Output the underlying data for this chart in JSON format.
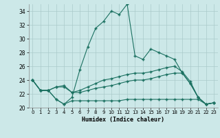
{
  "xlabel": "Humidex (Indice chaleur)",
  "ylabel": "",
  "xlim": [
    -0.5,
    23.5
  ],
  "ylim": [
    20,
    35
  ],
  "yticks": [
    20,
    22,
    24,
    26,
    28,
    30,
    32,
    34
  ],
  "xticks": [
    0,
    1,
    2,
    3,
    4,
    5,
    6,
    7,
    8,
    9,
    10,
    11,
    12,
    13,
    14,
    15,
    16,
    17,
    18,
    19,
    20,
    21,
    22,
    23
  ],
  "bg_color": "#cce8e8",
  "grid_color": "#aacaca",
  "line_color": "#1a7060",
  "lines": [
    [
      24.0,
      22.5,
      22.5,
      21.2,
      20.5,
      21.5,
      25.5,
      28.8,
      31.5,
      32.5,
      34.0,
      33.5,
      35.0,
      27.5,
      27.0,
      28.5,
      28.0,
      27.5,
      27.0,
      25.0,
      23.5,
      21.5,
      20.5,
      20.7
    ],
    [
      24.0,
      22.5,
      22.5,
      23.0,
      23.2,
      22.2,
      22.5,
      23.0,
      23.5,
      24.0,
      24.2,
      24.5,
      24.8,
      25.0,
      25.0,
      25.2,
      25.5,
      25.8,
      26.0,
      25.2,
      23.8,
      21.5,
      20.5,
      20.7
    ],
    [
      24.0,
      22.5,
      22.5,
      23.0,
      23.0,
      22.2,
      22.2,
      22.5,
      22.8,
      23.0,
      23.2,
      23.5,
      23.8,
      24.0,
      24.0,
      24.2,
      24.5,
      24.8,
      25.0,
      25.0,
      23.5,
      21.5,
      20.5,
      20.7
    ],
    [
      24.0,
      22.5,
      22.5,
      21.2,
      20.5,
      21.0,
      21.0,
      21.0,
      21.0,
      21.0,
      21.0,
      21.0,
      21.2,
      21.2,
      21.2,
      21.2,
      21.2,
      21.2,
      21.2,
      21.2,
      21.2,
      21.2,
      20.5,
      20.7
    ]
  ]
}
